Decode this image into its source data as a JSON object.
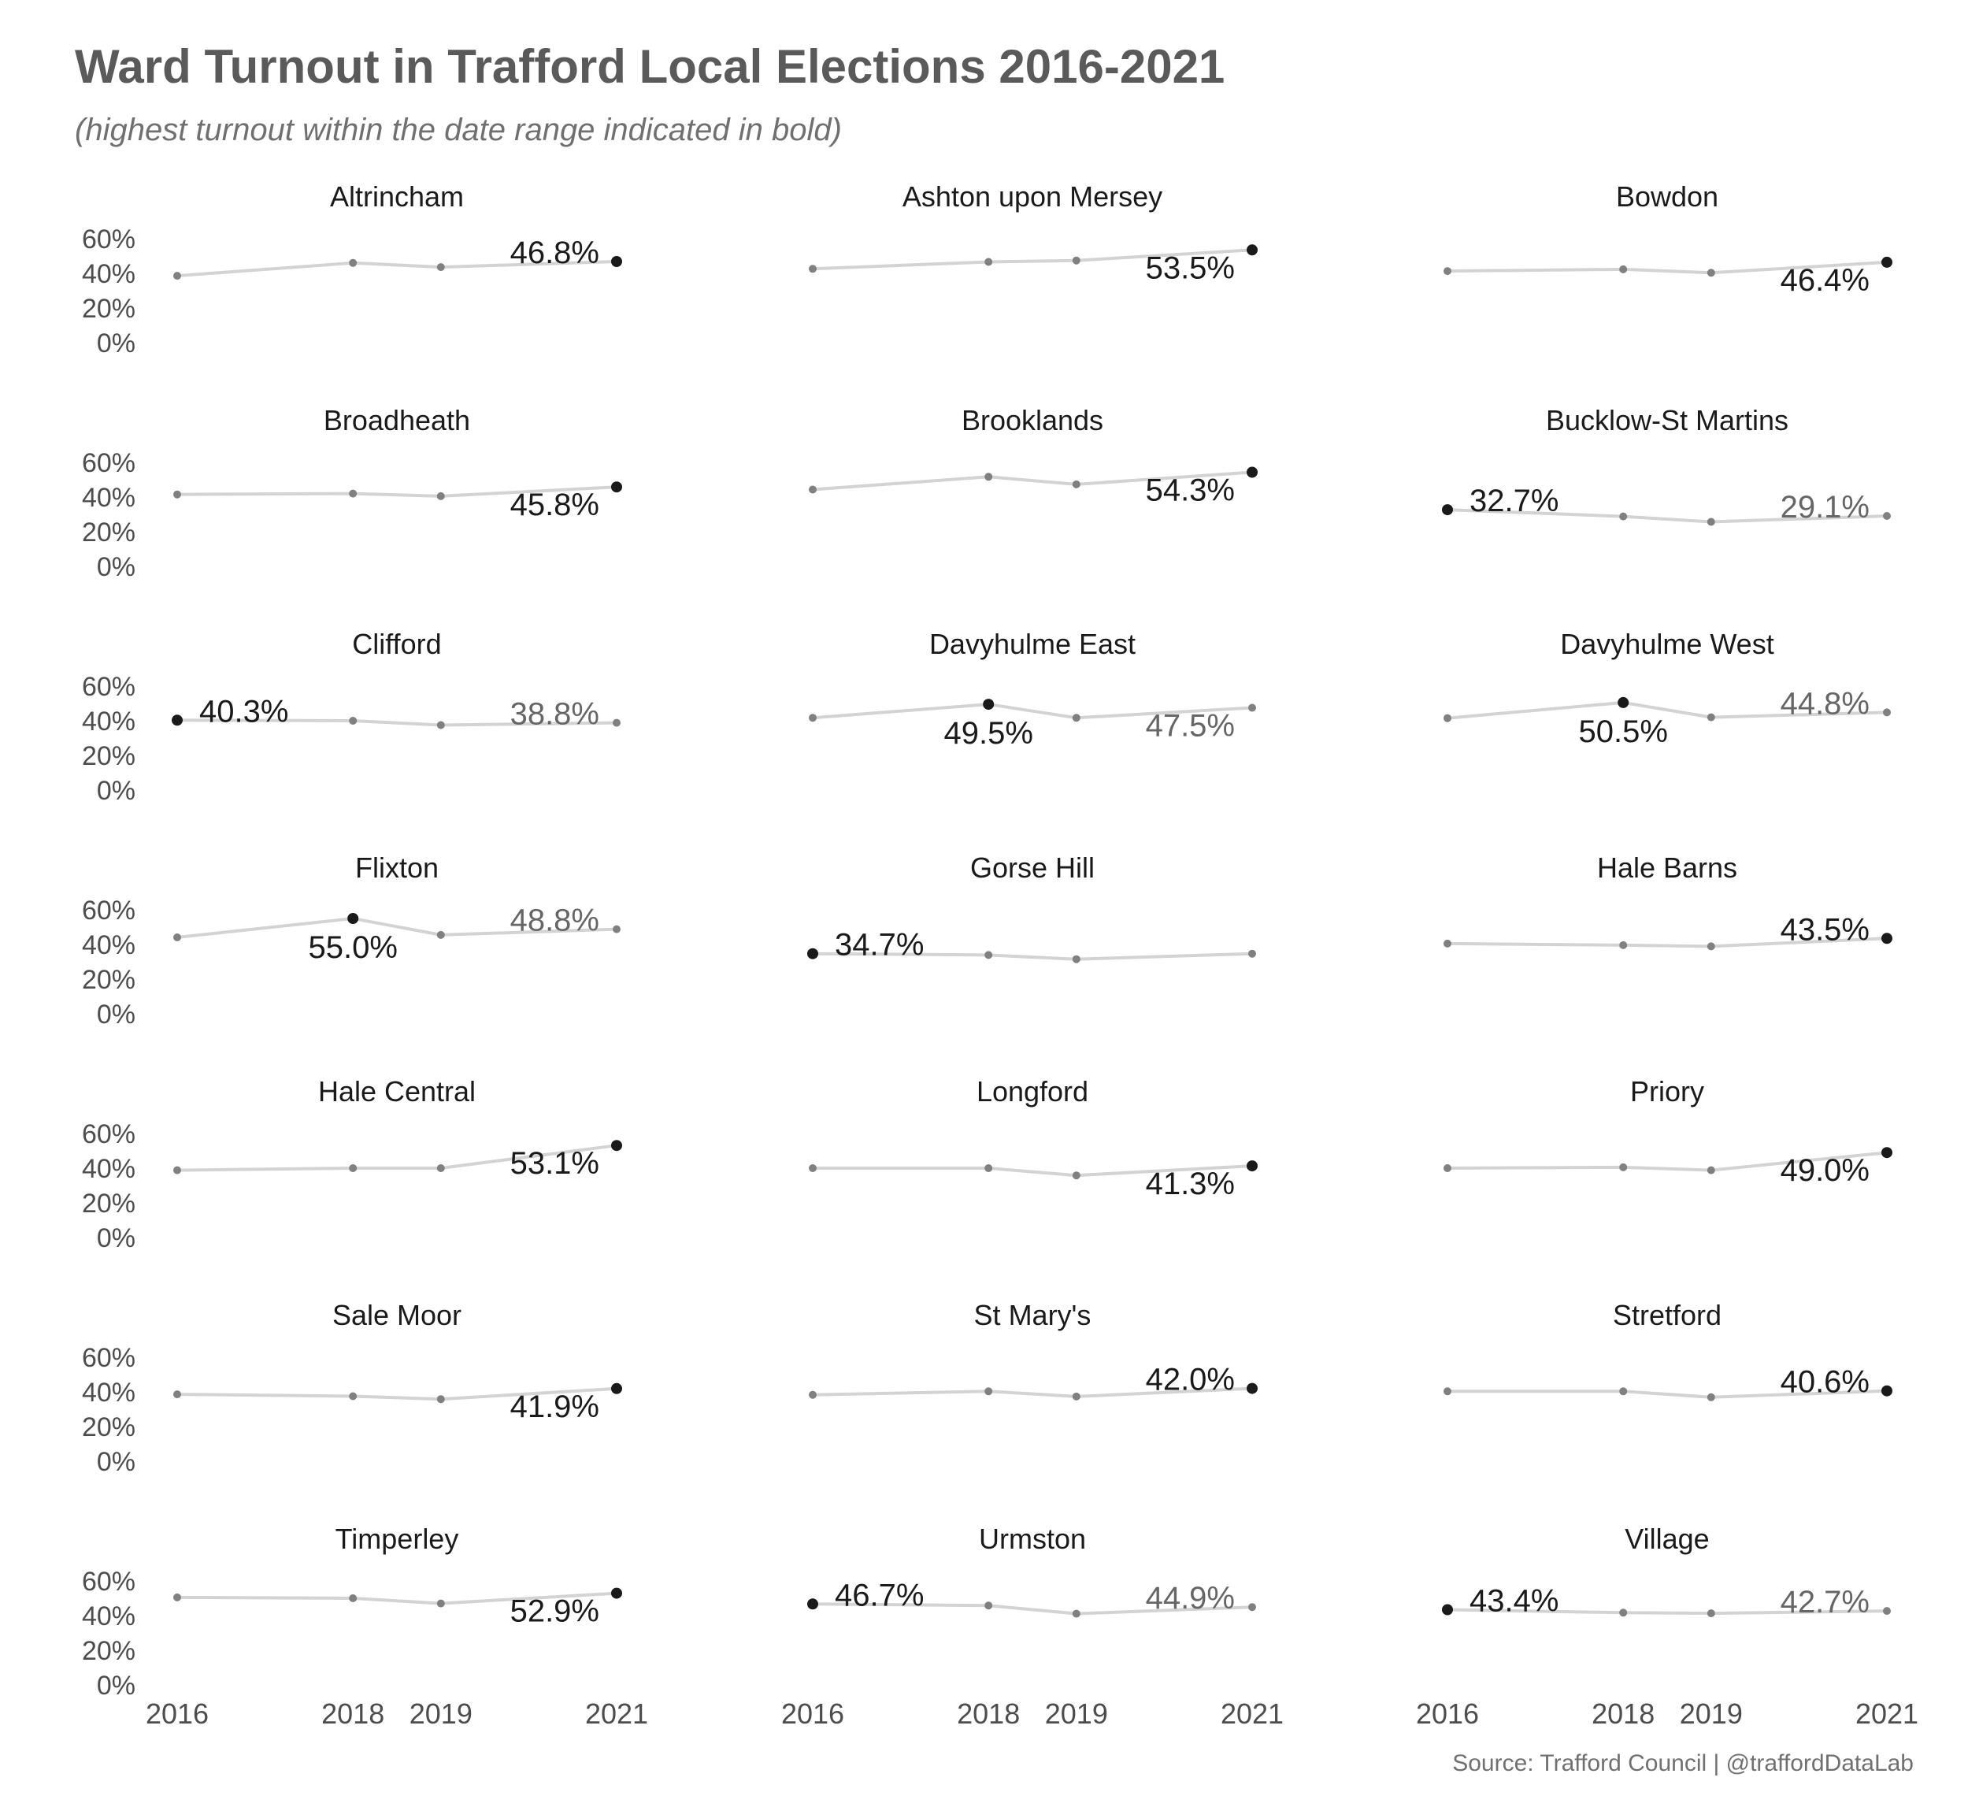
{
  "chart_data": {
    "type": "line",
    "title": "Ward Turnout in Trafford Local Elections 2016-2021",
    "subtitle": "(highest turnout within the date range indicated in bold)",
    "caption": "Source: Trafford Council  |  @traffordDataLab",
    "x": [
      2016,
      2018,
      2019,
      2021
    ],
    "x_tick_labels": [
      "2016",
      "2018",
      "2019",
      "2021"
    ],
    "y_ticks": [
      0,
      20,
      40,
      60
    ],
    "y_tick_labels": [
      "0%",
      "20%",
      "40%",
      "60%"
    ],
    "ylim": [
      0,
      65
    ],
    "layout": "facets, 3 columns x 7 rows",
    "colors": {
      "line": "#d3d3d3",
      "point": "#808080",
      "highlight": "#1a1a1a"
    },
    "facets": [
      {
        "name": "Altrincham",
        "values": [
          38.6,
          46.0,
          43.6,
          46.8
        ],
        "max_label": "46.8%",
        "last_label": ""
      },
      {
        "name": "Ashton upon Mersey",
        "values": [
          42.6,
          46.6,
          47.4,
          53.5
        ],
        "max_label": "53.5%",
        "last_label": ""
      },
      {
        "name": "Bowdon",
        "values": [
          41.3,
          42.3,
          40.3,
          46.4
        ],
        "max_label": "46.4%",
        "last_label": ""
      },
      {
        "name": "Broadheath",
        "values": [
          41.5,
          42.0,
          40.5,
          45.8
        ],
        "max_label": "45.8%",
        "last_label": ""
      },
      {
        "name": "Brooklands",
        "values": [
          44.3,
          51.7,
          47.3,
          54.3
        ],
        "max_label": "54.3%",
        "last_label": ""
      },
      {
        "name": "Bucklow-St Martins",
        "values": [
          32.7,
          28.8,
          25.7,
          29.1
        ],
        "max_label": "32.7%",
        "last_label": "29.1%"
      },
      {
        "name": "Clifford",
        "values": [
          40.3,
          40.0,
          37.5,
          38.8
        ],
        "max_label": "40.3%",
        "last_label": "38.8%"
      },
      {
        "name": "Davyhulme East",
        "values": [
          41.7,
          49.5,
          41.7,
          47.5
        ],
        "max_label": "49.5%",
        "last_label": "47.5%"
      },
      {
        "name": "Davyhulme West",
        "values": [
          41.5,
          50.5,
          42.0,
          44.8
        ],
        "max_label": "50.5%",
        "last_label": "44.8%"
      },
      {
        "name": "Flixton",
        "values": [
          44.1,
          55.0,
          45.5,
          48.8
        ],
        "max_label": "55.0%",
        "last_label": "48.8%"
      },
      {
        "name": "Gorse Hill",
        "values": [
          34.7,
          33.9,
          31.5,
          34.7
        ],
        "max_label": "34.7%",
        "last_label": ""
      },
      {
        "name": "Hale Barns",
        "values": [
          40.5,
          39.6,
          38.9,
          43.5
        ],
        "max_label": "43.5%",
        "last_label": ""
      },
      {
        "name": "Hale Central",
        "values": [
          38.8,
          40.0,
          40.0,
          53.1
        ],
        "max_label": "53.1%",
        "last_label": ""
      },
      {
        "name": "Longford",
        "values": [
          40.0,
          40.0,
          35.8,
          41.3
        ],
        "max_label": "41.3%",
        "last_label": ""
      },
      {
        "name": "Priory",
        "values": [
          40.0,
          40.5,
          38.8,
          49.0
        ],
        "max_label": "49.0%",
        "last_label": ""
      },
      {
        "name": "Sale Moor",
        "values": [
          38.6,
          37.5,
          35.8,
          41.9
        ],
        "max_label": "41.9%",
        "last_label": ""
      },
      {
        "name": "St Mary's",
        "values": [
          38.3,
          40.3,
          37.3,
          42.0
        ],
        "max_label": "42.0%",
        "last_label": ""
      },
      {
        "name": "Stretford",
        "values": [
          40.3,
          40.3,
          36.9,
          40.6
        ],
        "max_label": "40.6%",
        "last_label": ""
      },
      {
        "name": "Timperley",
        "values": [
          50.5,
          50.0,
          47.0,
          52.9
        ],
        "max_label": "52.9%",
        "last_label": ""
      },
      {
        "name": "Urmston",
        "values": [
          46.7,
          45.8,
          41.1,
          44.9
        ],
        "max_label": "46.7%",
        "last_label": "44.9%"
      },
      {
        "name": "Village",
        "values": [
          43.4,
          41.7,
          41.3,
          42.7
        ],
        "max_label": "43.4%",
        "last_label": "42.7%"
      }
    ]
  }
}
